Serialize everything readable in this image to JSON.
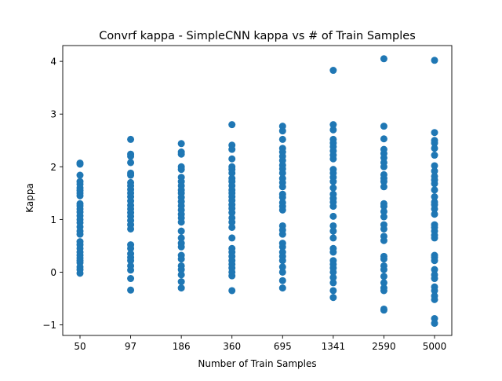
{
  "chart_data": {
    "type": "scatter",
    "title": "Convrf kappa - SimpleCNN kappa vs # of Train Samples",
    "xlabel": "Number of Train Samples",
    "ylabel": "Kappa",
    "categories": [
      "50",
      "97",
      "186",
      "360",
      "695",
      "1341",
      "2590",
      "5000"
    ],
    "ylim": [
      -1.2,
      4.3
    ],
    "yticks": [
      -1,
      0,
      1,
      2,
      3,
      4
    ],
    "ytick_labels": [
      "−1",
      "0",
      "1",
      "2",
      "3",
      "4"
    ],
    "grid": false,
    "marker_color": "#1f77b4",
    "series": [
      {
        "points": [
          {
            "x": "50",
            "y": [
              2.07,
              2.05,
              1.84,
              1.72,
              1.67,
              1.6,
              1.55,
              1.5,
              1.45,
              1.3,
              1.26,
              1.2,
              1.14,
              1.07,
              1.0,
              0.94,
              0.86,
              0.78,
              0.72,
              0.58,
              0.52,
              0.45,
              0.38,
              0.32,
              0.27,
              0.22,
              0.18,
              0.1,
              0.05,
              -0.02
            ]
          },
          {
            "x": "97",
            "y": [
              2.52,
              2.24,
              2.2,
              2.08,
              1.88,
              1.84,
              1.7,
              1.64,
              1.57,
              1.5,
              1.43,
              1.35,
              1.27,
              1.2,
              1.13,
              1.06,
              0.98,
              0.9,
              0.82,
              0.52,
              0.45,
              0.35,
              0.28,
              0.22,
              0.12,
              0.04,
              -0.12,
              -0.34
            ]
          },
          {
            "x": "186",
            "y": [
              2.44,
              2.28,
              2.24,
              2.0,
              1.95,
              1.8,
              1.72,
              1.64,
              1.56,
              1.5,
              1.42,
              1.34,
              1.26,
              1.18,
              1.1,
              1.03,
              0.95,
              0.78,
              0.65,
              0.55,
              0.48,
              0.32,
              0.25,
              0.12,
              0.05,
              -0.05,
              -0.18,
              -0.3
            ]
          },
          {
            "x": "360",
            "y": [
              2.8,
              2.41,
              2.33,
              2.15,
              2.0,
              1.95,
              1.88,
              1.78,
              1.72,
              1.64,
              1.56,
              1.5,
              1.43,
              1.36,
              1.28,
              1.21,
              1.13,
              1.03,
              0.95,
              0.85,
              0.65,
              0.45,
              0.38,
              0.3,
              0.22,
              0.15,
              0.08,
              0.0,
              -0.07,
              -0.35
            ]
          },
          {
            "x": "695",
            "y": [
              2.77,
              2.68,
              2.52,
              2.35,
              2.28,
              2.2,
              2.12,
              2.03,
              1.96,
              1.88,
              1.78,
              1.7,
              1.62,
              1.48,
              1.42,
              1.32,
              1.25,
              1.18,
              0.88,
              0.8,
              0.72,
              0.55,
              0.48,
              0.38,
              0.3,
              0.22,
              0.1,
              0.0,
              -0.16,
              -0.3
            ]
          },
          {
            "x": "1341",
            "y": [
              3.83,
              2.8,
              2.7,
              2.52,
              2.45,
              2.38,
              2.3,
              2.22,
              2.15,
              1.95,
              1.88,
              1.8,
              1.72,
              1.6,
              1.48,
              1.4,
              1.33,
              1.25,
              1.06,
              0.88,
              0.78,
              0.65,
              0.45,
              0.38,
              0.22,
              0.15,
              0.08,
              0.0,
              -0.1,
              -0.2,
              -0.35,
              -0.48
            ]
          },
          {
            "x": "2590",
            "y": [
              4.05,
              2.77,
              2.53,
              2.33,
              2.25,
              2.17,
              2.08,
              2.0,
              1.85,
              1.78,
              1.72,
              1.62,
              1.3,
              1.25,
              1.15,
              1.05,
              0.9,
              0.82,
              0.68,
              0.6,
              0.3,
              0.25,
              0.12,
              0.05,
              -0.08,
              -0.2,
              -0.3,
              -0.35,
              -0.7,
              -0.72
            ]
          },
          {
            "x": "5000",
            "y": [
              4.02,
              2.65,
              2.5,
              2.45,
              2.35,
              2.22,
              2.02,
              1.92,
              1.82,
              1.75,
              1.68,
              1.56,
              1.43,
              1.33,
              1.28,
              1.2,
              1.1,
              0.9,
              0.85,
              0.78,
              0.7,
              0.65,
              0.32,
              0.28,
              0.22,
              0.05,
              -0.05,
              -0.12,
              -0.28,
              -0.35,
              -0.45,
              -0.52,
              -0.88,
              -0.97
            ]
          }
        ]
      }
    ]
  }
}
